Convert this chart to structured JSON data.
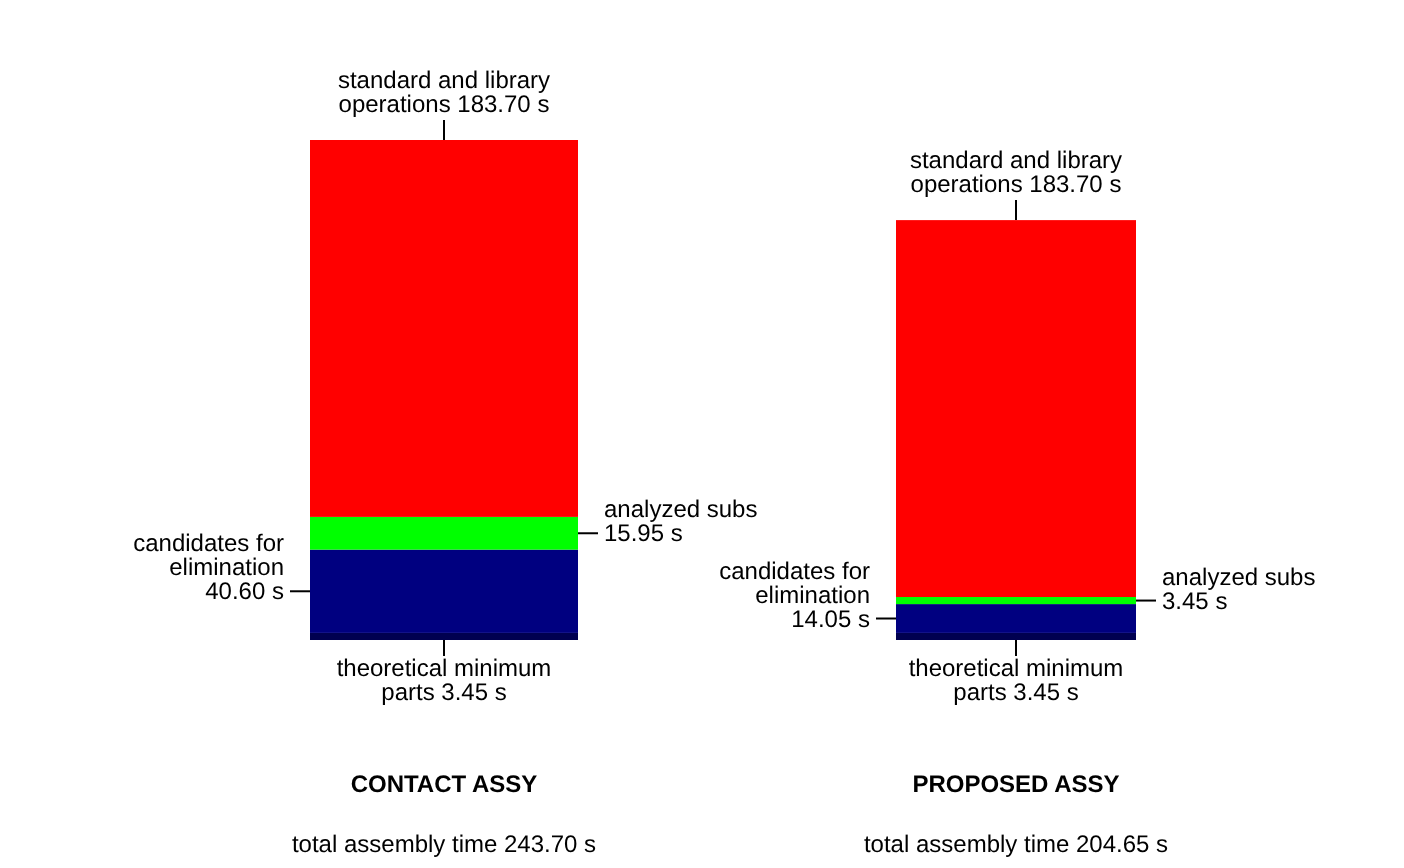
{
  "chart_data": {
    "type": "bar",
    "stacked": true,
    "tick_labels": "x",
    "categories": [
      "CONTACT ASSY",
      "PROPOSED ASSY"
    ],
    "series": [
      {
        "name": "theoretical minimum parts",
        "color": "#000050",
        "values": [
          3.45,
          3.45
        ],
        "value_labels": [
          "3.45 s",
          "3.45 s"
        ]
      },
      {
        "name": "candidates for elimination",
        "color": "#000080",
        "values": [
          40.6,
          14.05
        ],
        "value_labels": [
          "40.60 s",
          "14.05 s"
        ]
      },
      {
        "name": "analyzed subs",
        "color": "#00ff00",
        "values": [
          15.95,
          3.45
        ],
        "value_labels": [
          "15.95 s",
          "3.45 s"
        ]
      },
      {
        "name": "standard and library operations",
        "color": "#ff0000",
        "values": [
          183.7,
          183.7
        ],
        "value_labels": [
          "183.70 s",
          "183.70 s"
        ]
      }
    ],
    "annotations": [
      "total assembly time 243.70 s",
      "total assembly time 204.65 s"
    ]
  }
}
